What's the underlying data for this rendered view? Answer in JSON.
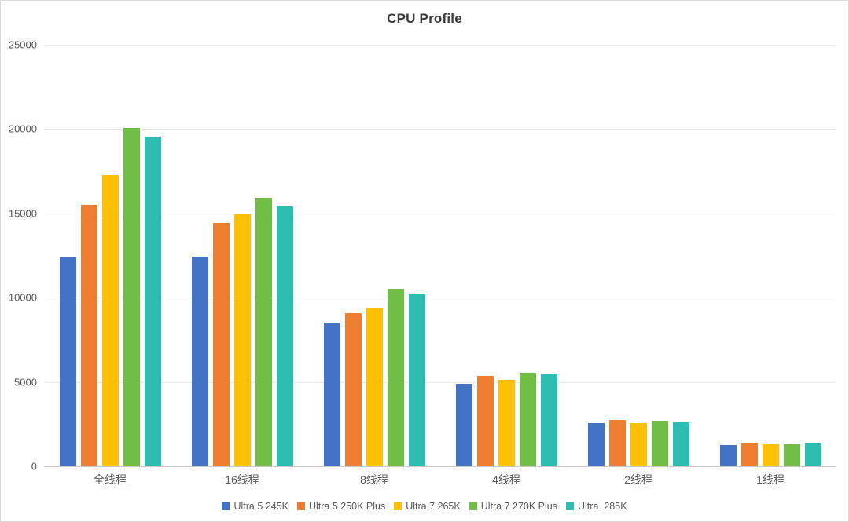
{
  "chart_data": {
    "type": "bar",
    "title": "CPU Profile",
    "categories": [
      "全线程",
      "16线程",
      "8线程",
      "4线程",
      "2线程",
      "1线程"
    ],
    "series": [
      {
        "name": "Ultra 5 245K",
        "color": "#4472c4",
        "values": [
          12400,
          12450,
          8500,
          4900,
          2550,
          1250
        ]
      },
      {
        "name": "Ultra 5 250K Plus",
        "color": "#ed7d31",
        "values": [
          15500,
          14450,
          9100,
          5350,
          2750,
          1400
        ]
      },
      {
        "name": "Ultra 7 265K",
        "color": "#fcc004",
        "values": [
          17250,
          15000,
          9400,
          5100,
          2550,
          1300
        ]
      },
      {
        "name": "Ultra 7 270K Plus",
        "color": "#70bf44",
        "values": [
          20050,
          15900,
          10500,
          5550,
          2700,
          1300
        ]
      },
      {
        "name": "Ultra  285K",
        "color": "#2cbcb0",
        "values": [
          19550,
          15400,
          10200,
          5500,
          2600,
          1400
        ]
      }
    ],
    "y_axis": {
      "min": 0,
      "max": 25000,
      "step": 5000,
      "tick_labels": [
        "0",
        "5000",
        "10000",
        "15000",
        "20000",
        "25000"
      ]
    },
    "grid": true,
    "legend_position": "bottom",
    "colors": {
      "title_text": "#3b3b3b",
      "axis_text": "#595959",
      "gridline": "#e9e9e9",
      "baseline": "#c9c9c9",
      "background": "#ffffff",
      "border": "#d9d9d9"
    }
  }
}
